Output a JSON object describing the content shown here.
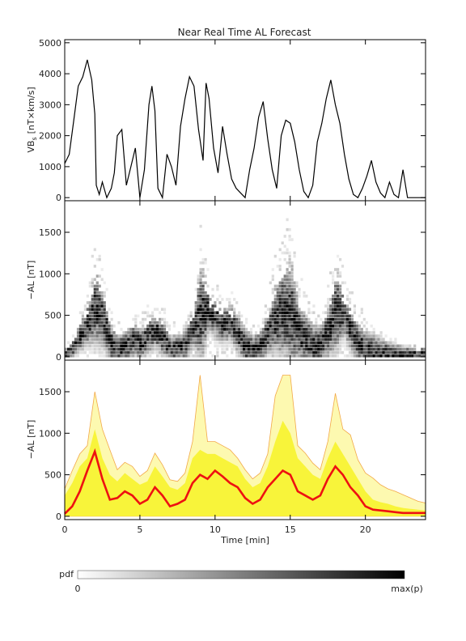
{
  "chart_data": [
    {
      "panel": "vbs",
      "type": "line",
      "title": "Near Real Time AL Forecast",
      "xlabel": "",
      "ylabel_main": "VB",
      "ylabel_sub": "s",
      "ylabel_units": "[nT×km/s]",
      "xlim": [
        0,
        24
      ],
      "ylim": [
        -100,
        5100
      ],
      "yticks": [
        0,
        1000,
        2000,
        3000,
        4000,
        5000
      ],
      "ytick_labels": [
        "0",
        "1000",
        "2000",
        "3000",
        "4000",
        "5000"
      ],
      "xticks": [
        0,
        5,
        10,
        15,
        20
      ],
      "line_color": "#000000",
      "series": [
        {
          "x": [
            0.0,
            0.3,
            0.6,
            0.9,
            1.2,
            1.5,
            1.8,
            2.0,
            2.1,
            2.3,
            2.5,
            2.8,
            3.1,
            3.3,
            3.5,
            3.8,
            4.1,
            4.4,
            4.7,
            5.0,
            5.3,
            5.6,
            5.8,
            6.0,
            6.2,
            6.5,
            6.8,
            7.1,
            7.4,
            7.7,
            8.0,
            8.3,
            8.6,
            8.9,
            9.2,
            9.4,
            9.6,
            9.9,
            10.2,
            10.5,
            10.8,
            11.1,
            11.4,
            11.7,
            12.0,
            12.3,
            12.6,
            12.9,
            13.2,
            13.5,
            13.8,
            14.1,
            14.4,
            14.7,
            15.0,
            15.3,
            15.6,
            15.9,
            16.2,
            16.5,
            16.8,
            17.1,
            17.4,
            17.7,
            18.0,
            18.3,
            18.6,
            18.9,
            19.2,
            19.5,
            19.8,
            20.1,
            20.4,
            20.7,
            21.0,
            21.3,
            21.6,
            21.9,
            22.2,
            22.5,
            22.8,
            23.1,
            23.4,
            23.7,
            24.0
          ],
          "y": [
            1100,
            1400,
            2500,
            3600,
            3900,
            4450,
            3800,
            2700,
            400,
            100,
            500,
            0,
            300,
            800,
            2000,
            2200,
            400,
            1000,
            1600,
            0,
            900,
            3000,
            3600,
            2800,
            300,
            0,
            1400,
            1000,
            400,
            2300,
            3200,
            3900,
            3600,
            2200,
            1200,
            3700,
            3200,
            1600,
            800,
            2300,
            1400,
            600,
            300,
            150,
            0,
            900,
            1600,
            2600,
            3100,
            1900,
            900,
            300,
            2000,
            2500,
            2400,
            1800,
            900,
            200,
            0,
            400,
            1800,
            2400,
            3200,
            3800,
            3000,
            2400,
            1400,
            600,
            100,
            0,
            300,
            700,
            1200,
            500,
            150,
            0,
            500,
            100,
            0,
            900,
            0,
            0,
            0,
            0,
            0
          ]
        }
      ]
    },
    {
      "panel": "pdf",
      "type": "heatmap",
      "title": "",
      "ylabel": "−AL [nT]",
      "xlim": [
        0,
        24
      ],
      "ylim": [
        -40,
        1880
      ],
      "yticks": [
        0,
        500,
        1000,
        1500
      ],
      "ytick_labels": [
        "0",
        "500",
        "1000",
        "1500"
      ],
      "xticks": [
        0,
        5,
        10,
        15,
        20
      ],
      "description_values": {
        "x": [
          0.0,
          0.5,
          1.0,
          1.5,
          2.0,
          2.5,
          3.0,
          3.5,
          4.0,
          4.5,
          5.0,
          5.5,
          6.0,
          6.5,
          7.0,
          7.5,
          8.0,
          8.5,
          9.0,
          9.5,
          10.0,
          10.5,
          11.0,
          11.5,
          12.0,
          12.5,
          13.0,
          13.5,
          14.0,
          14.5,
          15.0,
          15.5,
          16.0,
          16.5,
          17.0,
          17.5,
          18.0,
          18.5,
          19.0,
          19.5,
          20.0,
          20.5,
          21.0,
          21.5,
          22.0,
          22.5,
          23.0,
          23.5,
          24.0
        ],
        "mode_al": [
          20,
          100,
          250,
          400,
          600,
          450,
          150,
          80,
          120,
          200,
          150,
          250,
          300,
          200,
          80,
          100,
          150,
          350,
          500,
          550,
          450,
          380,
          400,
          250,
          100,
          80,
          120,
          300,
          450,
          550,
          500,
          300,
          200,
          120,
          150,
          300,
          550,
          500,
          300,
          150,
          80,
          50,
          40,
          30,
          25,
          20,
          20,
          20,
          20
        ],
        "max_al": [
          150,
          300,
          600,
          900,
          1500,
          1100,
          600,
          400,
          500,
          600,
          500,
          650,
          700,
          600,
          400,
          400,
          550,
          800,
          1700,
          1000,
          900,
          800,
          800,
          700,
          500,
          400,
          500,
          800,
          1300,
          1600,
          1700,
          1000,
          800,
          600,
          600,
          900,
          1500,
          1000,
          800,
          600,
          500,
          450,
          350,
          300,
          250,
          200,
          150,
          100,
          80
        ]
      }
    },
    {
      "panel": "forecast",
      "type": "area",
      "title": "",
      "xlabel": "Time [min]",
      "ylabel": "−AL [nT]",
      "xlim": [
        0,
        24
      ],
      "ylim": [
        -40,
        1880
      ],
      "yticks": [
        0,
        500,
        1000,
        1500
      ],
      "ytick_labels": [
        "0",
        "500",
        "1000",
        "1500"
      ],
      "xticks": [
        0,
        5,
        10,
        15,
        20
      ],
      "xtick_labels": [
        "0",
        "5",
        "10",
        "15",
        "20"
      ],
      "colors": {
        "median": "#ee1111",
        "band_inner": "#f8f43a",
        "band_outer": "#fdf9b0",
        "band_edge": "#f2a848"
      },
      "x": [
        0.0,
        0.5,
        1.0,
        1.5,
        2.0,
        2.5,
        3.0,
        3.5,
        4.0,
        4.5,
        5.0,
        5.5,
        6.0,
        6.5,
        7.0,
        7.5,
        8.0,
        8.5,
        9.0,
        9.5,
        10.0,
        10.5,
        11.0,
        11.5,
        12.0,
        12.5,
        13.0,
        13.5,
        14.0,
        14.5,
        15.0,
        15.5,
        16.0,
        16.5,
        17.0,
        17.5,
        18.0,
        18.5,
        19.0,
        19.5,
        20.0,
        20.5,
        21.0,
        21.5,
        22.0,
        22.5,
        23.0,
        23.5,
        24.0
      ],
      "series": [
        {
          "name": "median",
          "values": [
            30,
            120,
            300,
            550,
            780,
            450,
            200,
            220,
            300,
            250,
            150,
            200,
            350,
            250,
            120,
            150,
            200,
            400,
            500,
            450,
            550,
            480,
            400,
            350,
            220,
            150,
            200,
            350,
            450,
            550,
            500,
            300,
            250,
            200,
            250,
            450,
            600,
            500,
            350,
            250,
            120,
            80,
            70,
            60,
            50,
            40,
            40,
            40,
            40
          ]
        },
        {
          "name": "band_inner",
          "values": [
            250,
            400,
            600,
            700,
            1050,
            700,
            500,
            420,
            520,
            450,
            380,
            420,
            600,
            480,
            350,
            320,
            400,
            700,
            800,
            750,
            750,
            700,
            650,
            600,
            450,
            350,
            400,
            600,
            900,
            1150,
            1000,
            700,
            600,
            500,
            450,
            700,
            900,
            750,
            600,
            450,
            300,
            200,
            170,
            150,
            120,
            100,
            90,
            80,
            70
          ]
        },
        {
          "name": "band_outer",
          "values": [
            330,
            550,
            750,
            850,
            1500,
            1050,
            800,
            560,
            650,
            600,
            480,
            550,
            760,
            620,
            440,
            420,
            520,
            900,
            1700,
            900,
            900,
            850,
            800,
            700,
            560,
            450,
            520,
            750,
            1450,
            1700,
            1700,
            850,
            760,
            640,
            560,
            900,
            1480,
            1050,
            980,
            680,
            520,
            460,
            380,
            330,
            300,
            260,
            220,
            180,
            160
          ]
        }
      ]
    }
  ],
  "colorbar": {
    "label": "pdf",
    "min_label": "0",
    "max_label": "max(p)"
  }
}
